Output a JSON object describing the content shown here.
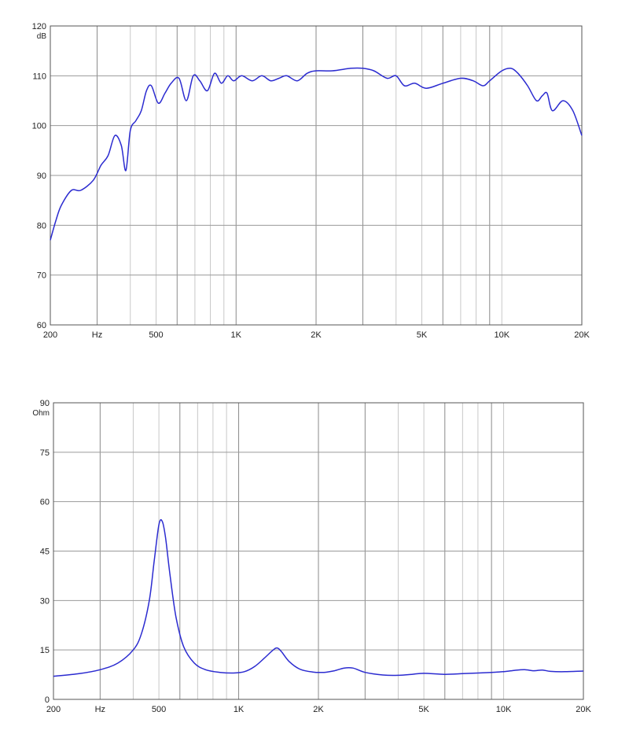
{
  "chart_data": [
    {
      "type": "line",
      "ylabel": "dB",
      "x_scale": "log",
      "xlim": [
        200,
        20000
      ],
      "ylim": [
        60,
        120
      ],
      "y_ticks": [
        "60",
        "70",
        "80",
        "90",
        "100",
        "110",
        "120"
      ],
      "x_ticks": [
        {
          "value": 200,
          "label": "200"
        },
        {
          "value": 300,
          "label": "Hz"
        },
        {
          "value": 500,
          "label": "500"
        },
        {
          "value": 1000,
          "label": "1K"
        },
        {
          "value": 2000,
          "label": "2K"
        },
        {
          "value": 5000,
          "label": "5K"
        },
        {
          "value": 10000,
          "label": "10K"
        },
        {
          "value": 20000,
          "label": "20K"
        }
      ],
      "minor_grid_x": [
        300,
        400,
        500,
        600,
        700,
        800,
        900,
        1000,
        2000,
        3000,
        4000,
        5000,
        6000,
        7000,
        8000,
        9000,
        10000
      ],
      "grid": true,
      "line_color": "#2b2bd0",
      "series": [
        {
          "x": [
            200,
            210,
            220,
            240,
            260,
            290,
            310,
            330,
            350,
            370,
            385,
            400,
            420,
            440,
            460,
            480,
            510,
            540,
            570,
            610,
            650,
            690,
            730,
            780,
            830,
            880,
            930,
            980,
            1050,
            1150,
            1250,
            1350,
            1450,
            1550,
            1700,
            1850,
            2000,
            2300,
            2700,
            3000,
            3300,
            3700,
            4000,
            4300,
            4700,
            5200,
            6000,
            7000,
            7800,
            8500,
            9000,
            10000,
            10800,
            11500,
            12500,
            13500,
            14200,
            14800,
            15500,
            17000,
            18500,
            20000
          ],
          "y": [
            77,
            81,
            84,
            87,
            87,
            89,
            92,
            94,
            98,
            96,
            91,
            99,
            101,
            103,
            107,
            108,
            104.5,
            106.5,
            108.5,
            109.5,
            105,
            110,
            109,
            107,
            110.5,
            108.5,
            110,
            109,
            110,
            109,
            110,
            109,
            109.5,
            110,
            109,
            110.5,
            111,
            111,
            111.5,
            111.5,
            111,
            109.5,
            110,
            108,
            108.5,
            107.5,
            108.5,
            109.5,
            109,
            108,
            109,
            111,
            111.5,
            110.5,
            108,
            105,
            106,
            106.5,
            103,
            105,
            103,
            98
          ]
        }
      ]
    },
    {
      "type": "line",
      "ylabel": "Ohm",
      "x_scale": "log",
      "xlim": [
        200,
        20000
      ],
      "ylim": [
        0,
        90
      ],
      "y_ticks": [
        "0",
        "15",
        "30",
        "45",
        "60",
        "75",
        "90"
      ],
      "x_ticks": [
        {
          "value": 200,
          "label": "200"
        },
        {
          "value": 300,
          "label": "Hz"
        },
        {
          "value": 500,
          "label": "500"
        },
        {
          "value": 1000,
          "label": "1K"
        },
        {
          "value": 2000,
          "label": "2K"
        },
        {
          "value": 5000,
          "label": "5K"
        },
        {
          "value": 10000,
          "label": "10K"
        },
        {
          "value": 20000,
          "label": "20K"
        }
      ],
      "minor_grid_x": [
        300,
        400,
        500,
        600,
        700,
        800,
        900,
        1000,
        2000,
        3000,
        4000,
        5000,
        6000,
        7000,
        8000,
        9000,
        10000
      ],
      "grid": true,
      "line_color": "#2b2bd0",
      "series": [
        {
          "x": [
            200,
            250,
            300,
            350,
            400,
            430,
            460,
            480,
            500,
            515,
            530,
            550,
            580,
            620,
            680,
            750,
            850,
            950,
            1050,
            1150,
            1250,
            1350,
            1400,
            1450,
            1550,
            1700,
            1900,
            2100,
            2300,
            2500,
            2700,
            3000,
            3500,
            4000,
            4500,
            5000,
            6000,
            7000,
            8000,
            9000,
            10000,
            11000,
            12000,
            13000,
            14000,
            15000,
            17000,
            20000
          ],
          "y": [
            7,
            7.8,
            9,
            11,
            15,
            20,
            30,
            42,
            53,
            54,
            49,
            38,
            25,
            16,
            11,
            9,
            8.2,
            8,
            8.4,
            10,
            12.5,
            15,
            15.6,
            14.5,
            11.5,
            9.2,
            8.3,
            8.2,
            8.7,
            9.5,
            9.5,
            8.2,
            7.4,
            7.3,
            7.6,
            7.9,
            7.6,
            7.8,
            8,
            8.2,
            8.4,
            8.8,
            9,
            8.7,
            8.9,
            8.5,
            8.4,
            8.6
          ]
        }
      ]
    }
  ]
}
